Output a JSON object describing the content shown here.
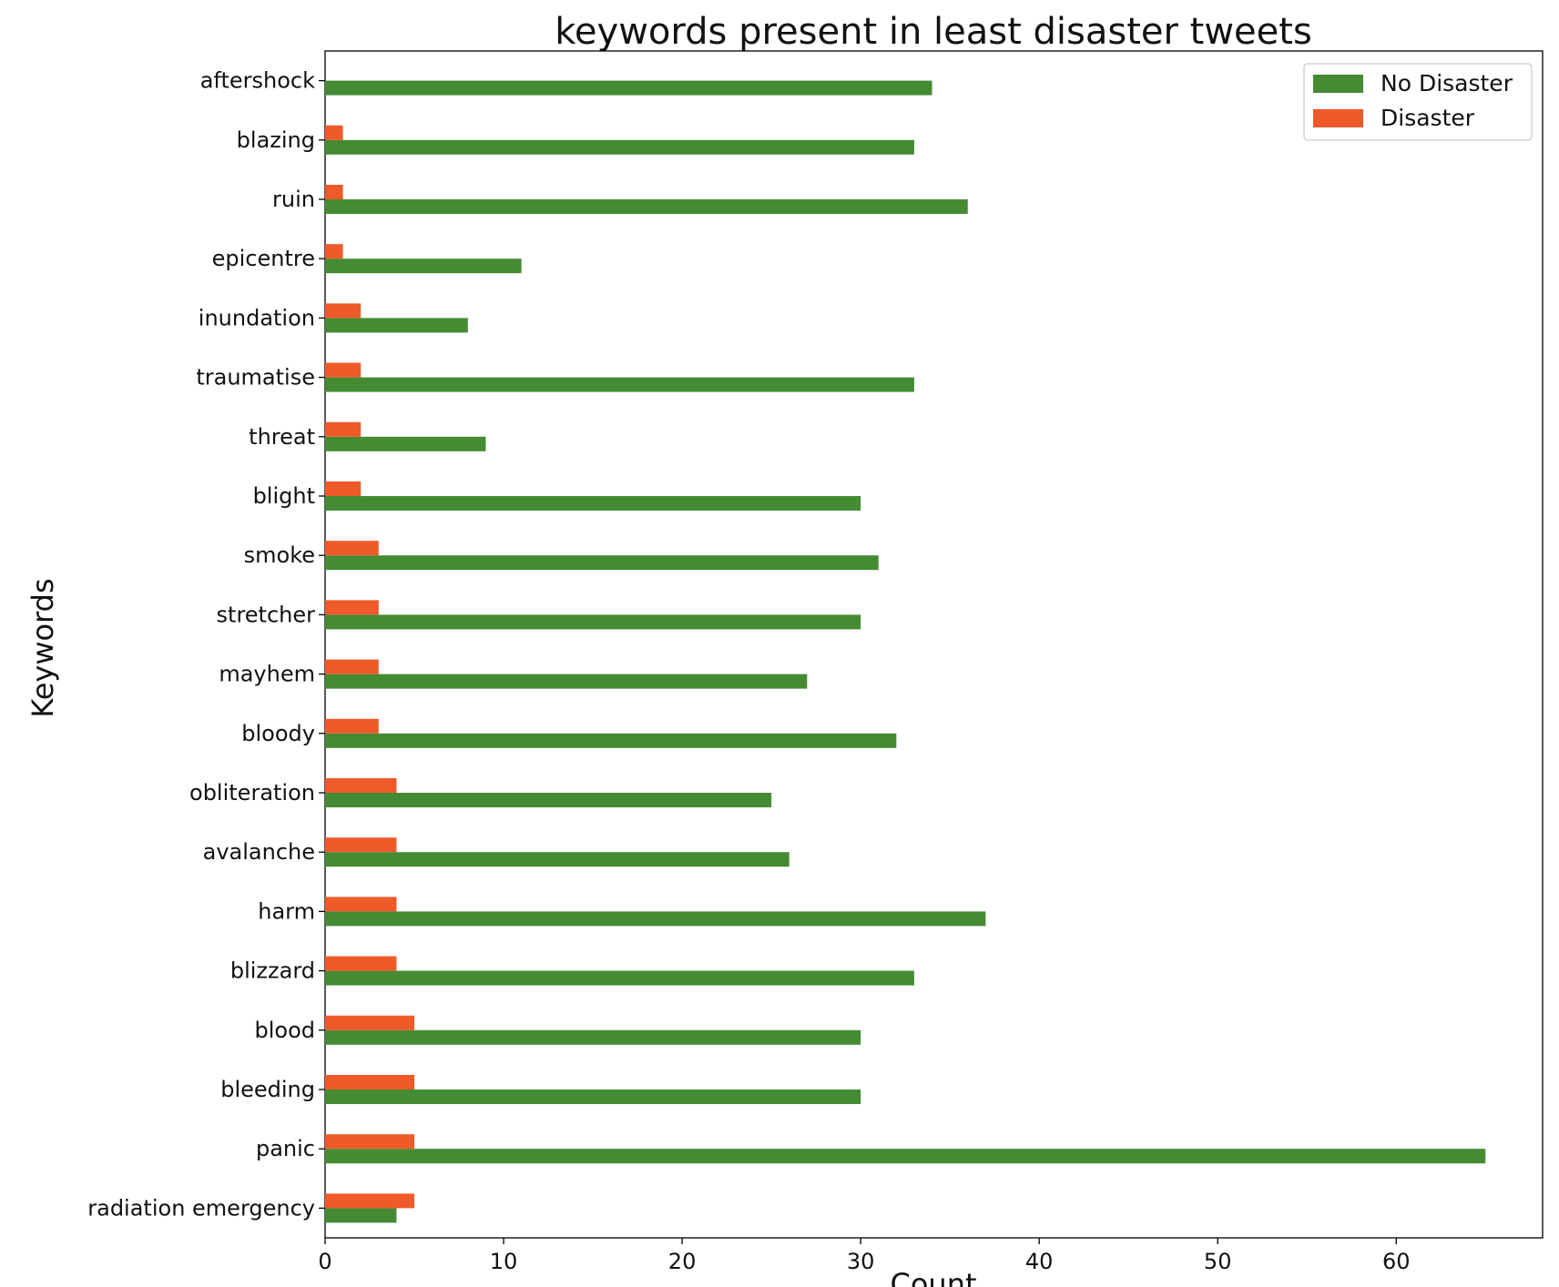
{
  "chart_data": {
    "type": "bar",
    "orientation": "horizontal",
    "title": "keywords present in least disaster tweets",
    "xlabel": "Count",
    "ylabel": "Keywords",
    "xlim": [
      0,
      68.2
    ],
    "xticks": [
      0,
      10,
      20,
      30,
      40,
      50,
      60
    ],
    "grid": false,
    "legend_position": "top-right",
    "categories": [
      "aftershock",
      "blazing",
      "ruin",
      "epicentre",
      "inundation",
      "traumatise",
      "threat",
      "blight",
      "smoke",
      "stretcher",
      "mayhem",
      "bloody",
      "obliteration",
      "avalanche",
      "harm",
      "blizzard",
      "blood",
      "bleeding",
      "panic",
      "radiation emergency"
    ],
    "series": [
      {
        "name": "No Disaster",
        "color": "#458B33",
        "values": [
          34,
          33,
          36,
          11,
          8,
          33,
          9,
          30,
          31,
          30,
          27,
          32,
          25,
          26,
          37,
          33,
          30,
          30,
          65,
          4
        ]
      },
      {
        "name": "Disaster",
        "color": "#EF5A2A",
        "values": [
          0,
          1,
          1,
          1,
          2,
          2,
          2,
          2,
          3,
          3,
          3,
          3,
          4,
          4,
          4,
          4,
          5,
          5,
          5,
          5
        ]
      }
    ]
  }
}
